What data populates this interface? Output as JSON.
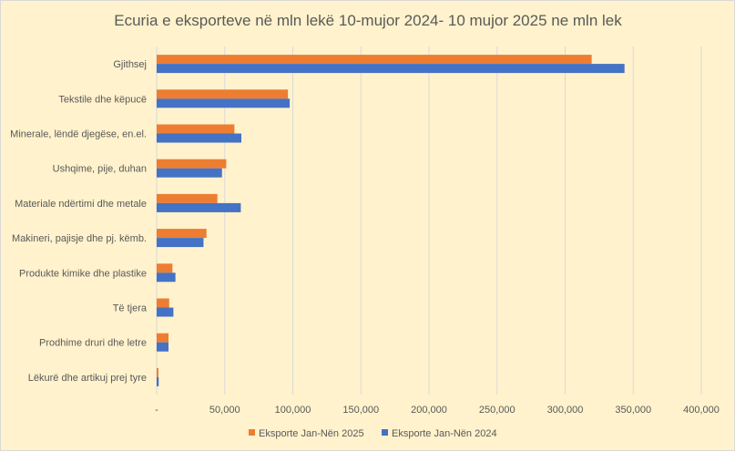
{
  "chart_data": {
    "type": "bar",
    "orientation": "horizontal",
    "title": "Ecuria e eksporteve në mln lekë 10-mujor 2024- 10  mujor 2025 ne mln lek",
    "xlabel": "",
    "ylabel": "",
    "xlim": [
      0,
      400000
    ],
    "x_ticks": [
      0,
      50000,
      100000,
      150000,
      200000,
      250000,
      300000,
      350000,
      400000
    ],
    "x_tick_labels": [
      "-",
      "50,000",
      "100,000",
      "150,000",
      "200,000",
      "250,000",
      "300,000",
      "350,000",
      "400,000"
    ],
    "grid": true,
    "legend_position": "bottom",
    "categories": [
      "Gjithsej",
      "Tekstile dhe këpucë",
      "Minerale, lëndë djegëse, en.el.",
      "Ushqime, pije, duhan",
      "Materiale ndërtimi dhe metale",
      "Makineri, pajisje dhe pj. këmb.",
      "Produkte kimike dhe plastike",
      "Të tjera",
      "Prodhime druri dhe letre",
      "Lëkurë dhe artikuj prej tyre"
    ],
    "series": [
      {
        "name": "Eksporte Jan-Nën 2025",
        "color": "#ED7D31",
        "values": [
          319500,
          96400,
          57100,
          51100,
          44600,
          36600,
          11600,
          9200,
          8700,
          1300
        ]
      },
      {
        "name": "Eksporte Jan-Nën 2024",
        "color": "#4472C4",
        "values": [
          343600,
          97700,
          62200,
          48000,
          61800,
          34400,
          13800,
          12300,
          8700,
          1500
        ]
      }
    ]
  }
}
